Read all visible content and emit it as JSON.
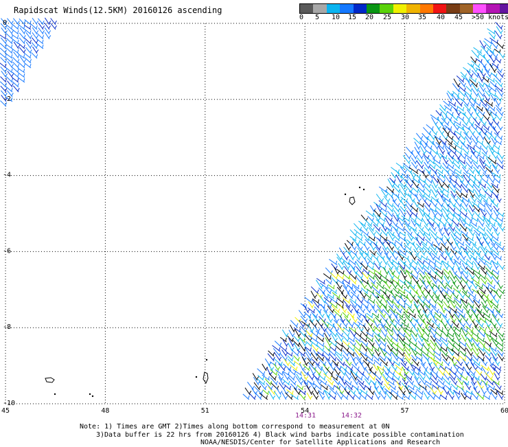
{
  "title": "Rapidscat Winds(12.5KM) 20160126 ascending",
  "colorbar": {
    "colors": [
      "#5a5a5a",
      "#a8a8a8",
      "#0ab4f0",
      "#1478ff",
      "#0028c8",
      "#0a9614",
      "#5ad20a",
      "#f0f000",
      "#f0b400",
      "#ff7800",
      "#f01414",
      "#783c14",
      "#a06428",
      "#ff50ff",
      "#b414b4",
      "#6414a0"
    ],
    "labels": [
      "0",
      "5",
      "10",
      "15",
      "20",
      "25",
      "30",
      "35",
      "40",
      "45",
      ">50 knots"
    ]
  },
  "axes": {
    "x_ticks": [
      "45",
      "48",
      "51",
      "54",
      "57",
      "60"
    ],
    "y_ticks": [
      "0",
      "-2",
      "-4",
      "-6",
      "-8",
      "-10"
    ]
  },
  "times": [
    "14:31",
    "14:32"
  ],
  "notes": [
    "Note: 1) Times are GMT 2)Times along bottom correspond to measurement at 0N",
    "3)Data buffer is 22 hrs from 20160126 4) Black wind barbs indicate possible contamination",
    "NOAA/NESDIS/Center for Satellite Applications and Research"
  ]
}
